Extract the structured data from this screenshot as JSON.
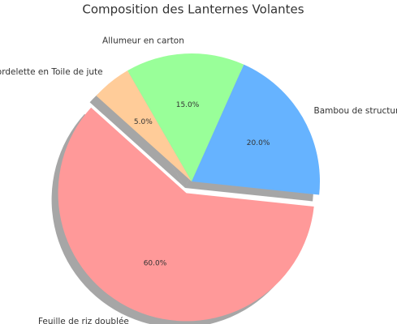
{
  "chart_data": {
    "type": "pie",
    "title": "Composition des Lanternes Volantes",
    "categories": [
      "Feuille de riz doublée",
      "Bambou de structure",
      "Allumeur en carton",
      "Cordelette en Toile de jute"
    ],
    "values": [
      60,
      20,
      15,
      5
    ],
    "value_labels": [
      "60.0%",
      "20.0%",
      "15.0%",
      "5.0%"
    ],
    "colors": [
      "#ff9999",
      "#66b3ff",
      "#99ff99",
      "#ffcc99"
    ],
    "shadow": true
  }
}
